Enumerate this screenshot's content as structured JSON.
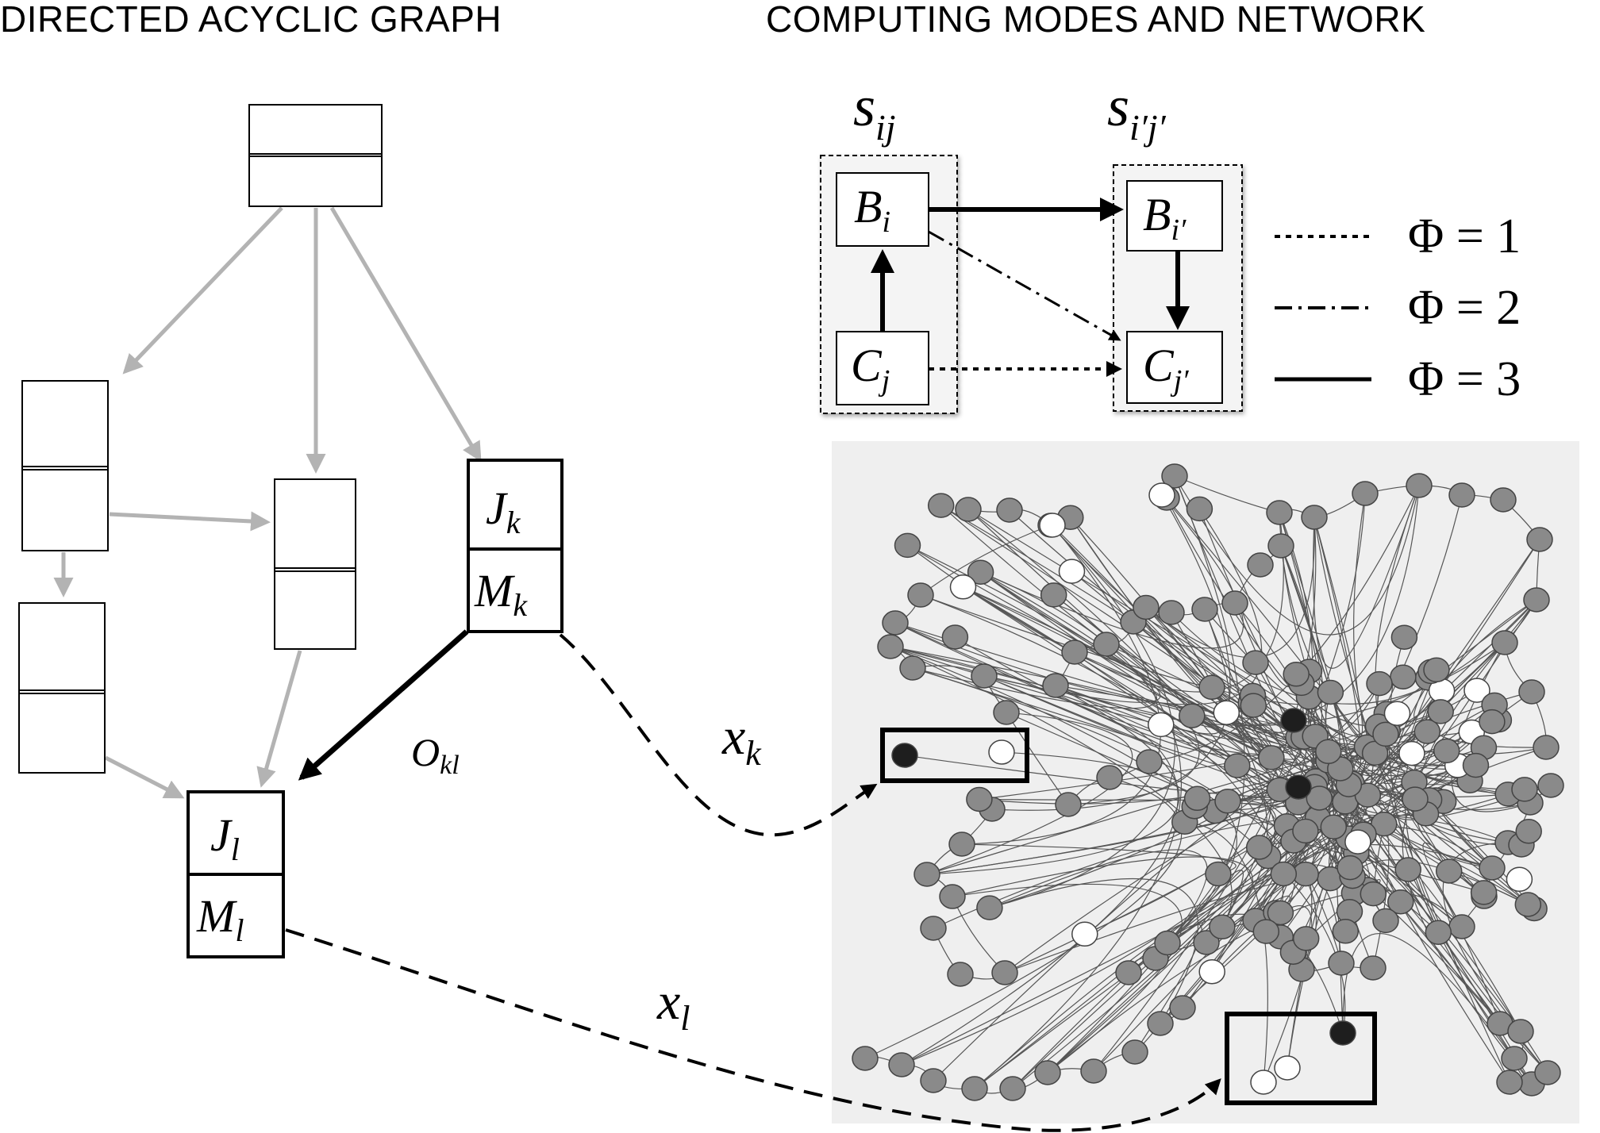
{
  "headings": {
    "left": "DIRECTED ACYCLIC GRAPH",
    "right": "COMPUTING MODES AND NETWORK"
  },
  "dag": {
    "node_k": {
      "job_main": "J",
      "job_sub": "k",
      "mode_main": "M",
      "mode_sub": "k"
    },
    "node_l": {
      "job_main": "J",
      "job_sub": "l",
      "mode_main": "M",
      "mode_sub": "l"
    },
    "edge_label": {
      "main": "O",
      "sub": "kl"
    }
  },
  "modes": {
    "s_ij": {
      "main": "s",
      "sub": "ij"
    },
    "s_ipjp": {
      "main": "s",
      "sub": "i′j′"
    },
    "B_i": {
      "main": "B",
      "sub": "i"
    },
    "C_j": {
      "main": "C",
      "sub": "j"
    },
    "B_ip": {
      "main": "B",
      "sub": "i′"
    },
    "C_jp": {
      "main": "C",
      "sub": "j′"
    }
  },
  "legend": [
    {
      "label": "Φ = 1",
      "style": "dotted"
    },
    {
      "label": "Φ = 2",
      "style": "dash-dot"
    },
    {
      "label": "Φ = 3",
      "style": "solid"
    }
  ],
  "mappings": {
    "x_k": {
      "main": "x",
      "sub": "k"
    },
    "x_l": {
      "main": "x",
      "sub": "l"
    }
  },
  "colors": {
    "dag_edge": "#b3b3b3",
    "network_bg": "#efefef",
    "node_gray": "#8a8a8a",
    "node_white": "#ffffff",
    "node_black": "#1e1e1e"
  }
}
